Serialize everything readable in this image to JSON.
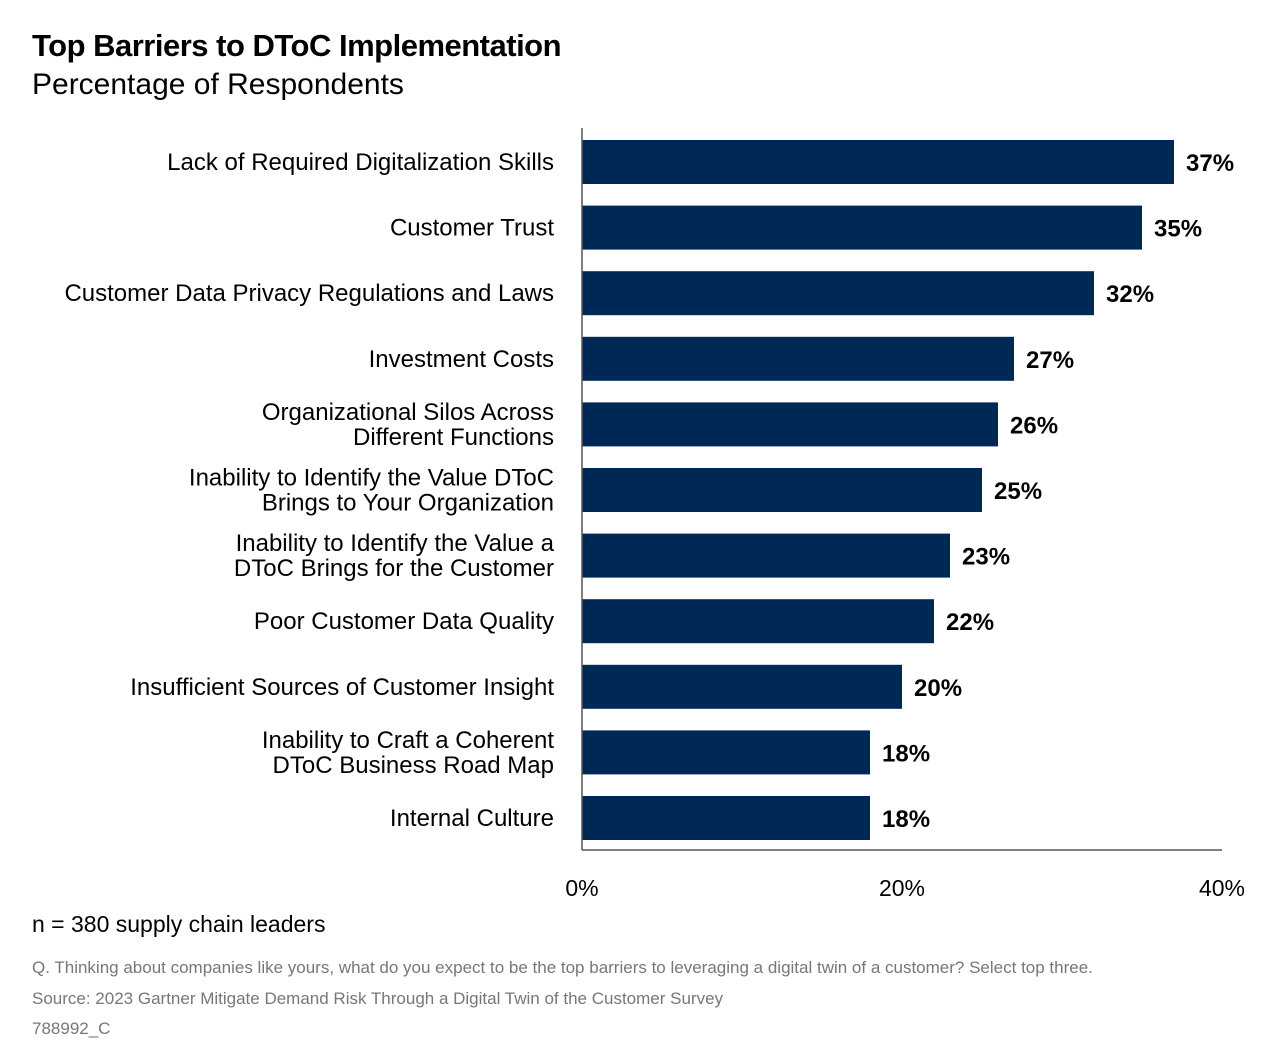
{
  "chart_data": {
    "type": "bar",
    "orientation": "horizontal",
    "title": "Top Barriers to DToC Implementation",
    "subtitle": "Percentage of Respondents",
    "categories": [
      "Lack of Required Digitalization Skills",
      "Customer Trust",
      "Customer Data Privacy Regulations and Laws",
      "Investment Costs",
      "Organizational Silos Across\nDifferent Functions",
      "Inability to Identify the Value DToC\nBrings to Your Organization",
      "Inability to Identify the Value a\nDToC Brings for the Customer",
      "Poor Customer Data Quality",
      "Insufficient Sources of Customer Insight",
      "Inability to Craft a Coherent\nDToC Business Road Map",
      "Internal Culture"
    ],
    "values": [
      37,
      35,
      32,
      27,
      26,
      25,
      23,
      22,
      20,
      18,
      18
    ],
    "value_labels": [
      "37%",
      "35%",
      "32%",
      "27%",
      "26%",
      "25%",
      "23%",
      "22%",
      "20%",
      "18%",
      "18%"
    ],
    "xlim": [
      0,
      40
    ],
    "xticks": [
      0,
      20,
      40
    ],
    "xtick_labels": [
      "0%",
      "20%",
      "40%"
    ],
    "grid": false,
    "bar_color": "#002856"
  },
  "footer": {
    "sample": "n = 380 supply chain leaders",
    "question": "Q. Thinking about companies like yours, what do you expect to be the top barriers to leveraging a digital twin of a customer? Select top three.",
    "source": "Source: 2023 Gartner Mitigate Demand Risk Through a Digital Twin of the Customer Survey",
    "id": "788992_C"
  }
}
